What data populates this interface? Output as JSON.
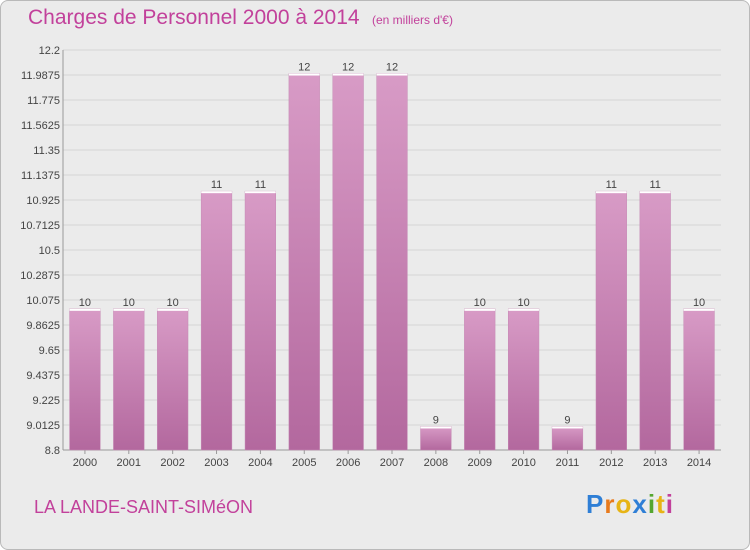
{
  "header": {
    "title": "Charges de Personnel 2000 à 2014",
    "subtitle": "(en milliers d'€)"
  },
  "footer": {
    "city": "LA LANDE-SAINT-SIMéON",
    "logo": "Proxiti",
    "logo_colors": [
      "#2f7fd6",
      "#e87a1c",
      "#e7b416",
      "#2f7fd6",
      "#55a630",
      "#e7b416",
      "#c2419b"
    ]
  },
  "colors": {
    "bar": "#d89bc6",
    "bar_dark": "#b3689e",
    "accent": "#c2419b"
  },
  "chart_data": {
    "type": "bar",
    "title": "Charges de Personnel 2000 à 2014",
    "subtitle": "(en milliers d'€)",
    "categories": [
      "2000",
      "2001",
      "2002",
      "2003",
      "2004",
      "2005",
      "2006",
      "2007",
      "2008",
      "2009",
      "2010",
      "2011",
      "2012",
      "2013",
      "2014"
    ],
    "values": [
      10,
      10,
      10,
      11,
      11,
      12,
      12,
      12,
      9,
      10,
      10,
      9,
      11,
      11,
      10
    ],
    "plotted_values": [
      10,
      10,
      10,
      11,
      11,
      12,
      12,
      12,
      9,
      10,
      10,
      9,
      11,
      11,
      10
    ],
    "data_labels": [
      "10",
      "10",
      "10",
      "11",
      "11",
      "12",
      "12",
      "12",
      "9",
      "10",
      "10",
      "9",
      "11",
      "11",
      "10"
    ],
    "y_ticks": [
      "8.8",
      "9.0125",
      "9.225",
      "9.4375",
      "9.65",
      "9.8625",
      "10.075",
      "10.2875",
      "10.5",
      "10.7125",
      "10.925",
      "11.1375",
      "11.35",
      "11.5625",
      "11.775",
      "11.9875",
      "12.2"
    ],
    "ylim": [
      8.8,
      12.2
    ],
    "grid": true,
    "legend": "none"
  }
}
